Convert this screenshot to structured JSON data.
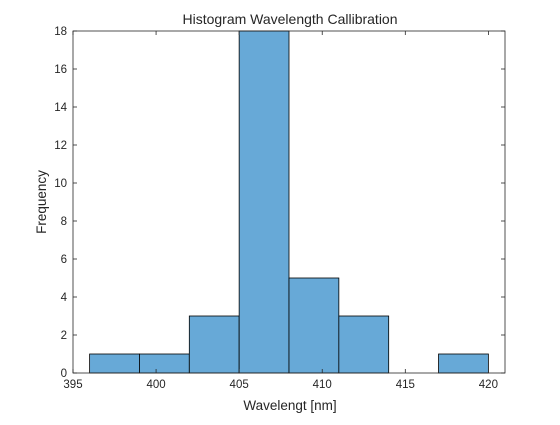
{
  "chart_data": {
    "type": "bar",
    "title": "Histogram Wavelength Callibration",
    "xlabel": "Wavelengt [nm]",
    "ylabel": "Frequency",
    "xlim": [
      395,
      421
    ],
    "ylim": [
      0,
      18
    ],
    "xticks": [
      395,
      400,
      405,
      410,
      415,
      420
    ],
    "yticks": [
      0,
      2,
      4,
      6,
      8,
      10,
      12,
      14,
      16,
      18
    ],
    "bin_edges": [
      396,
      399,
      402,
      405,
      408,
      411,
      414,
      417,
      420
    ],
    "values": [
      1,
      1,
      3,
      18,
      5,
      3,
      0,
      1
    ],
    "bar_color": "#67a9d7",
    "bar_edge_color": "#000000",
    "grid": false,
    "legend": "none"
  }
}
